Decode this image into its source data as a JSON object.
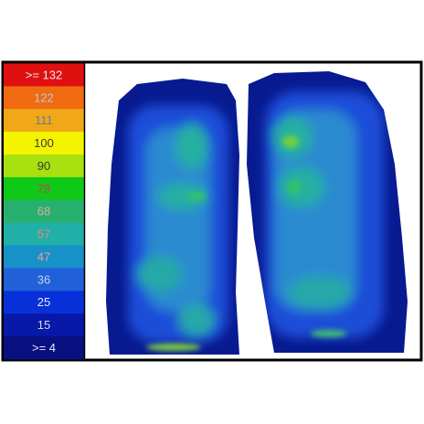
{
  "legend": {
    "items": [
      {
        "label": ">= 132",
        "color": "#e01010",
        "text_color": "#f0e8e8"
      },
      {
        "label": "122",
        "color": "#f06a10",
        "text_color": "#b9c6dc"
      },
      {
        "label": "111",
        "color": "#f0a818",
        "text_color": "#6c7a94"
      },
      {
        "label": "100",
        "color": "#f4f400",
        "text_color": "#3a3a3a"
      },
      {
        "label": "90",
        "color": "#a8e010",
        "text_color": "#3a3a3a"
      },
      {
        "label": "79",
        "color": "#10c818",
        "text_color": "#c04848"
      },
      {
        "label": "68",
        "color": "#28b070",
        "text_color": "#e0a8a8"
      },
      {
        "label": "57",
        "color": "#20b0a8",
        "text_color": "#f08080"
      },
      {
        "label": "47",
        "color": "#1890c8",
        "text_color": "#f0a0a0"
      },
      {
        "label": "36",
        "color": "#2060d8",
        "text_color": "#c8d0f0"
      },
      {
        "label": "25",
        "color": "#0830d8",
        "text_color": "#e8e8f8"
      },
      {
        "label": "15",
        "color": "#0818a8",
        "text_color": "#d8d8f0"
      },
      {
        "label": ">= 4",
        "color": "#081080",
        "text_color": "#e8e8f8"
      }
    ]
  }
}
